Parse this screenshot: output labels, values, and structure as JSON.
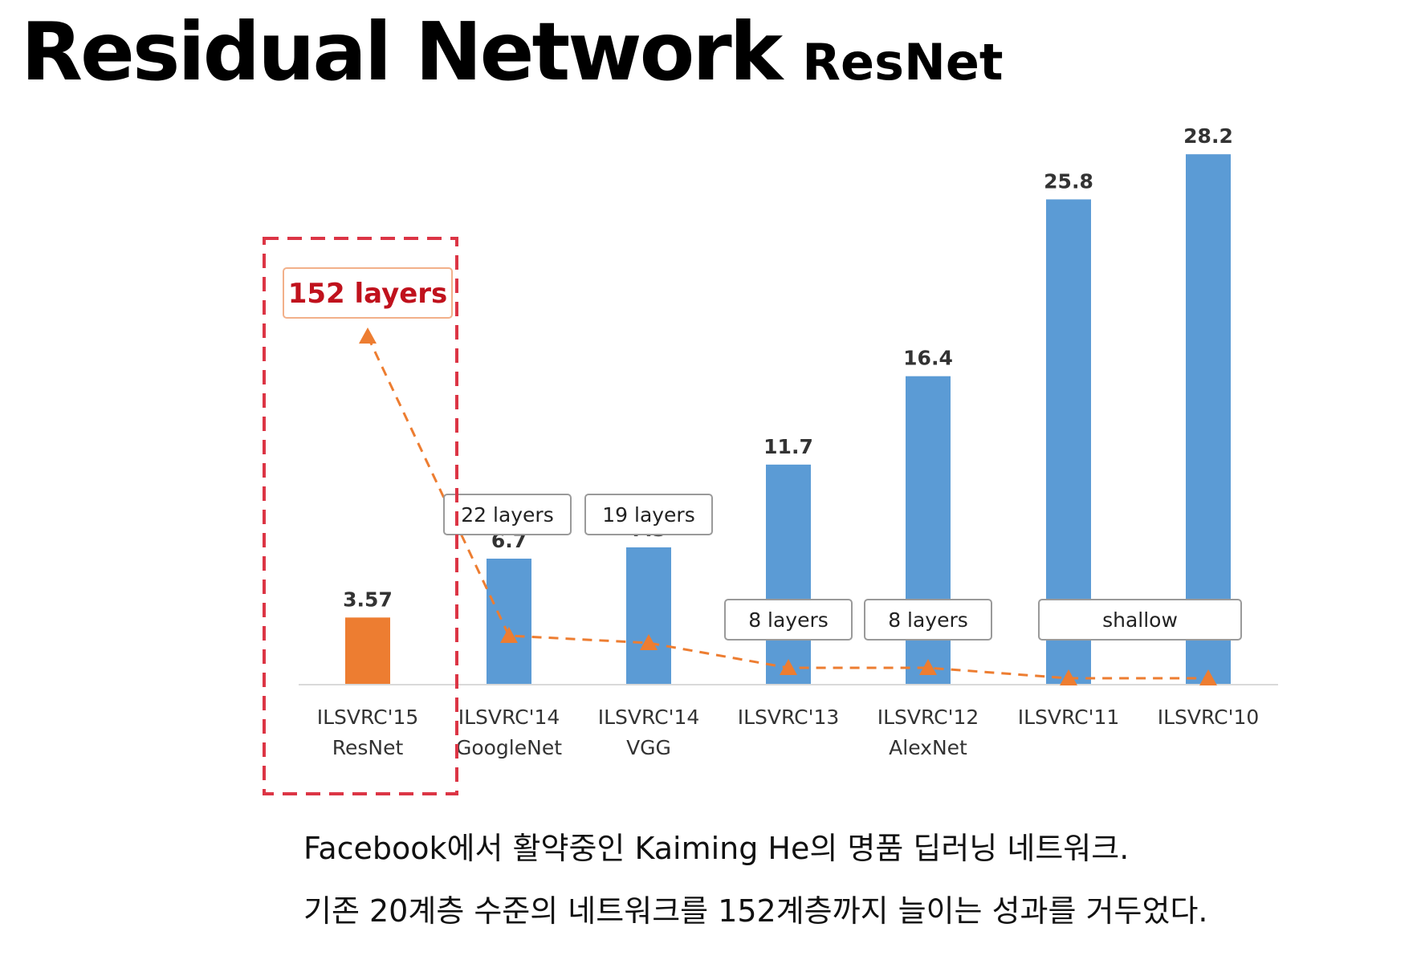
{
  "header": {
    "title": "Residual Network",
    "subtitle": "ResNet"
  },
  "chart_data": {
    "type": "bar",
    "categories": [
      [
        "ILSVRC'15",
        "ResNet"
      ],
      [
        "ILSVRC'14",
        "GoogleNet"
      ],
      [
        "ILSVRC'14",
        "VGG"
      ],
      [
        "ILSVRC'13",
        ""
      ],
      [
        "ILSVRC'12",
        "AlexNet"
      ],
      [
        "ILSVRC'11",
        ""
      ],
      [
        "ILSVRC'10",
        ""
      ]
    ],
    "values": [
      3.57,
      6.7,
      7.3,
      11.7,
      16.4,
      25.8,
      28.2
    ],
    "value_labels": [
      "3.57",
      "6.7",
      "7.3",
      "11.7",
      "16.4",
      "25.8",
      "28.2"
    ],
    "bar_colors": [
      "#ed7d31",
      "#5b9bd5",
      "#5b9bd5",
      "#5b9bd5",
      "#5b9bd5",
      "#5b9bd5",
      "#5b9bd5"
    ],
    "layer_labels": [
      "152 layers",
      "22 layers",
      "19 layers",
      "8 layers",
      "8 layers",
      "shallow",
      ""
    ],
    "layer_line": {
      "color": "#ed7d31",
      "style": "dashed",
      "marker": "triangle"
    },
    "highlight": {
      "category_index": 0,
      "color": "#dc3545",
      "style": "dashed"
    },
    "ylim": [
      0,
      30
    ],
    "grid": false,
    "legend": "none"
  },
  "caption": {
    "line1": "Facebook에서 활약중인 Kaiming He의 명품 딥러닝 네트워크.",
    "line2": "기존 20계층 수준의 네트워크를 152계층까지 늘이는 성과를 거두었다."
  }
}
